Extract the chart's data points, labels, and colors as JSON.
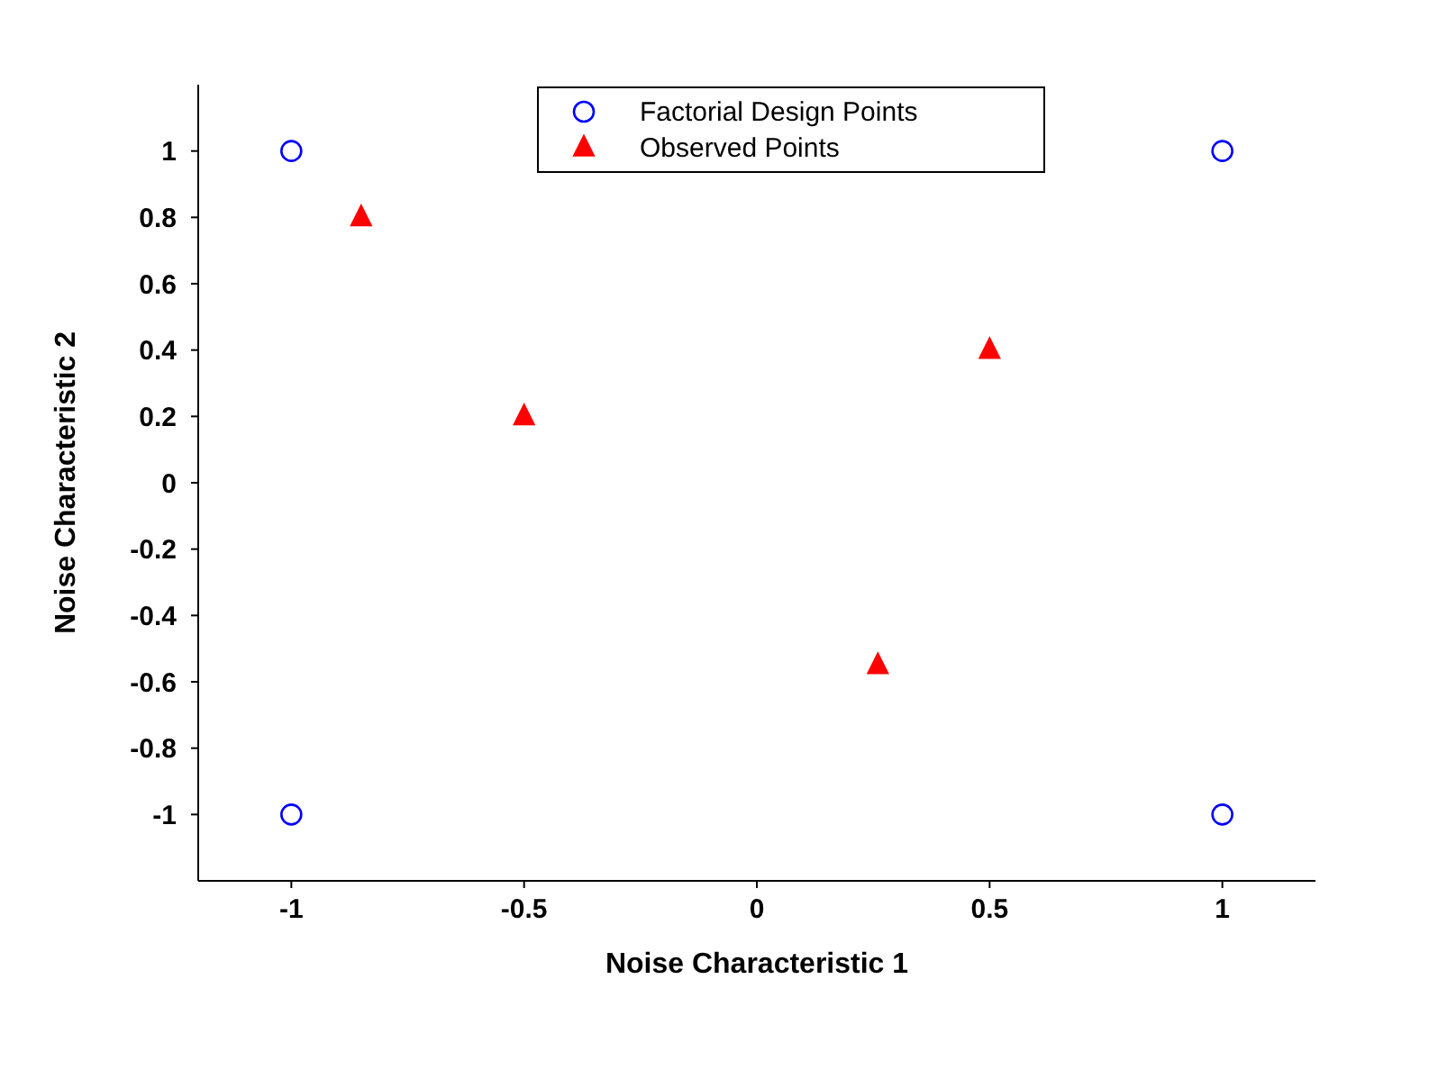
{
  "chart_data": {
    "type": "scatter",
    "xlabel": "Noise Characteristic 1",
    "ylabel": "Noise Characteristic 2",
    "xlim": [
      -1.2,
      1.2
    ],
    "ylim": [
      -1.2,
      1.2
    ],
    "xticks": [
      -1,
      -0.5,
      0,
      0.5,
      1
    ],
    "yticks": [
      -1,
      -0.8,
      -0.6,
      -0.4,
      -0.2,
      0,
      0.2,
      0.4,
      0.6,
      0.8,
      1
    ],
    "grid": false,
    "legend": "top",
    "series": [
      {
        "name": "Factorial Design Points",
        "color": "#0000ff",
        "marker": "circle",
        "x": [
          -1,
          -1,
          1,
          1
        ],
        "values": [
          1,
          -1,
          1,
          -1
        ]
      },
      {
        "name": "Observed Points",
        "color": "#ff0000",
        "marker": "triangle",
        "x": [
          -0.85,
          -0.5,
          0.5,
          0.26
        ],
        "values": [
          0.8,
          0.2,
          0.4,
          -0.55
        ]
      }
    ]
  }
}
